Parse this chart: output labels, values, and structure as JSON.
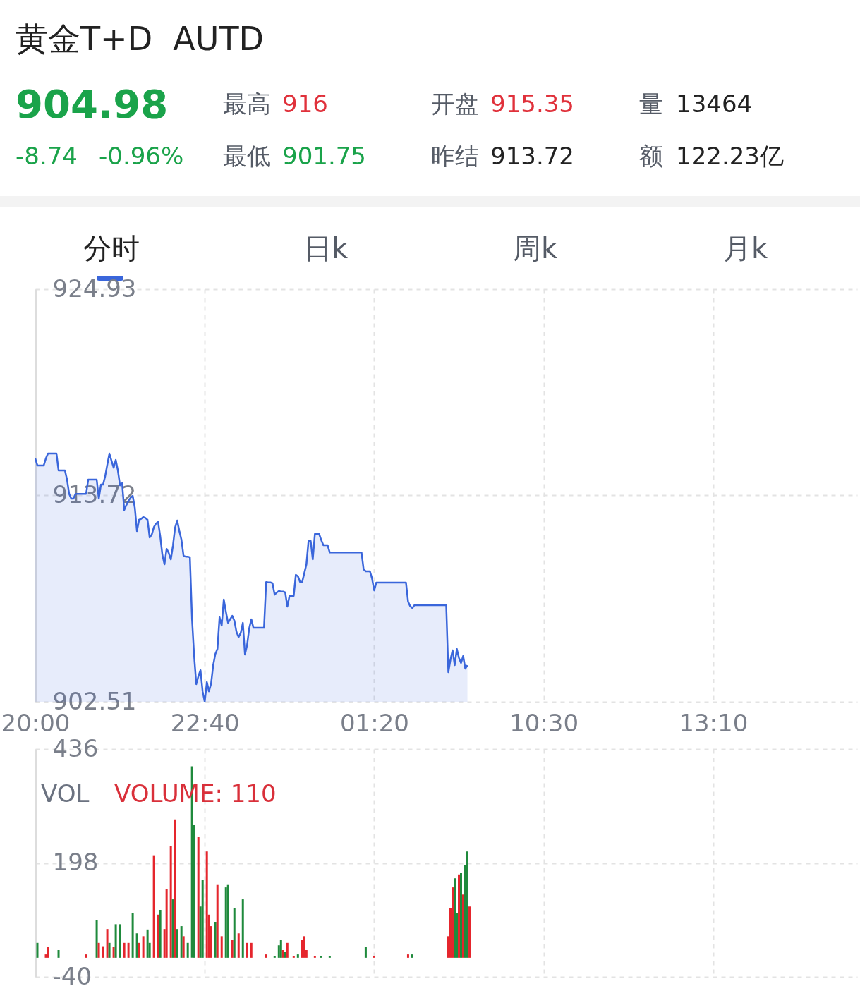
{
  "chart_data": [
    {
      "type": "area",
      "title": "黄金T+D  AUTD",
      "annotations": [
        "904.98",
        "-8.74",
        "-0.96%",
        "最高",
        "916",
        "最低",
        "901.75",
        "开盘",
        "915.35",
        "昨结",
        "913.72",
        "量",
        "13464",
        "额",
        "122.23亿",
        "分时",
        "日k",
        "周k",
        "月k"
      ],
      "color": "#3a66db",
      "categories": [
        "20:00",
        null,
        null,
        null,
        null,
        null,
        null,
        null,
        null,
        null,
        null,
        null,
        null,
        null,
        null,
        null,
        null,
        null,
        null,
        null,
        null,
        null,
        null,
        null,
        null,
        null,
        null,
        null,
        null,
        null,
        null,
        null,
        null,
        null,
        null,
        null,
        null,
        null,
        null,
        null,
        null,
        null,
        null,
        null,
        null,
        null,
        null,
        null,
        null,
        null,
        null,
        null,
        null,
        null,
        null,
        null,
        null,
        null,
        null,
        null,
        null,
        null,
        null,
        null,
        null,
        null,
        null,
        null,
        null,
        null,
        null,
        null,
        null,
        null,
        null,
        null,
        null,
        null,
        null,
        null,
        "22:40",
        null,
        null,
        null,
        null,
        null,
        null,
        null,
        null,
        null,
        null,
        null,
        null,
        null,
        null,
        null,
        null,
        null,
        null,
        null,
        null,
        null,
        null,
        null,
        null,
        null,
        null,
        null,
        null,
        null,
        null,
        null,
        null,
        null,
        null,
        null,
        null,
        null,
        null,
        null,
        null,
        null,
        null,
        null,
        null,
        null,
        null,
        null,
        null,
        null,
        null,
        null,
        null,
        null,
        null,
        null,
        null,
        null,
        null,
        null,
        null,
        null,
        null,
        null,
        null,
        null,
        null,
        null,
        null,
        null,
        null,
        null,
        null,
        null,
        null,
        null,
        null,
        null,
        null,
        null,
        "01:20",
        null,
        null,
        null,
        null,
        null,
        null,
        null,
        null,
        null,
        null,
        null,
        null,
        null,
        null,
        null,
        null,
        null,
        null,
        null,
        null,
        null,
        null,
        null,
        null,
        null,
        null,
        null,
        null,
        null,
        null,
        null,
        null,
        null,
        null,
        null,
        null,
        null,
        null,
        null,
        null,
        null,
        null,
        null,
        null,
        null,
        null,
        null,
        null,
        null,
        null,
        null,
        null,
        null,
        null,
        null,
        null,
        null,
        null,
        null,
        null,
        null,
        null,
        null,
        null,
        null,
        null,
        null,
        null,
        null,
        null,
        null,
        null,
        null,
        null,
        null,
        null,
        null,
        null,
        null,
        "10:30",
        null,
        null,
        null,
        null,
        null,
        null,
        null,
        null,
        null,
        null,
        null,
        null,
        null,
        null,
        null,
        null,
        null,
        null,
        null,
        null,
        null,
        null,
        null,
        null,
        null,
        null,
        null,
        null,
        null,
        null,
        null,
        null,
        null,
        null,
        null,
        null,
        null,
        null,
        null,
        null,
        null,
        null,
        null,
        null,
        null,
        null,
        null,
        null,
        null,
        null,
        null,
        null,
        null,
        null,
        null,
        null,
        null,
        null,
        null,
        null,
        null,
        null,
        null,
        null,
        null,
        null,
        null,
        null,
        null,
        null,
        null,
        null,
        null,
        null,
        null,
        null,
        null,
        null,
        null,
        "13:10",
        null,
        null,
        null,
        null,
        null,
        null,
        null,
        null,
        null,
        null,
        null,
        null,
        null,
        null,
        null,
        null,
        null,
        null,
        null,
        null,
        null,
        null,
        null,
        null,
        null,
        null,
        null,
        null,
        null,
        null,
        null,
        null,
        null,
        null,
        null,
        null,
        null,
        null,
        null,
        null,
        null,
        null,
        null,
        null,
        null,
        null,
        null,
        null,
        null,
        null,
        null,
        null,
        null,
        null,
        null,
        null,
        null,
        null,
        null,
        null,
        null,
        null,
        null,
        null,
        null,
        null,
        null,
        null
      ],
      "values": [
        915.73,
        915.35,
        915.35,
        915.35,
        915.35,
        915.73,
        916.0,
        916.0,
        916.0,
        916.0,
        916.0,
        915.08,
        915.08,
        915.08,
        915.08,
        914.58,
        913.81,
        913.55,
        913.55,
        913.81,
        913.81,
        913.81,
        913.81,
        913.81,
        913.81,
        914.58,
        914.58,
        914.58,
        914.58,
        914.58,
        913.55,
        914.31,
        914.31,
        914.77,
        915.4,
        916.0,
        915.6,
        915.23,
        915.65,
        915.08,
        914.27,
        914.39,
        912.93,
        913.2,
        913.43,
        913.6,
        913.7,
        913.05,
        911.78,
        912.4,
        912.45,
        912.55,
        912.5,
        912.4,
        911.44,
        911.6,
        912.0,
        912.2,
        912.28,
        911.5,
        910.5,
        909.98,
        910.82,
        910.6,
        910.25,
        911.0,
        911.97,
        912.36,
        911.8,
        911.32,
        910.44,
        910.4,
        910.4,
        910.36,
        907.03,
        905.0,
        903.47,
        903.9,
        904.23,
        903.08,
        902.51,
        903.58,
        903.08,
        903.5,
        904.5,
        905.11,
        905.38,
        907.11,
        906.65,
        908.07,
        907.4,
        906.8,
        907.0,
        907.18,
        906.92,
        906.3,
        906.03,
        906.26,
        906.8,
        905.08,
        905.6,
        906.5,
        906.99,
        906.53,
        906.53,
        906.53,
        906.53,
        906.53,
        906.53,
        909.02,
        909.0,
        909.0,
        908.95,
        908.33,
        908.45,
        908.53,
        908.5,
        908.5,
        908.45,
        907.68,
        908.26,
        908.26,
        908.26,
        909.41,
        909.33,
        909.02,
        909.02,
        909.5,
        909.98,
        911.25,
        911.25,
        910.25,
        911.63,
        911.63,
        911.63,
        911.3,
        911.02,
        911.02,
        911.02,
        910.63,
        910.63,
        910.63,
        910.63,
        910.63,
        910.63,
        910.63,
        910.63,
        910.63,
        910.63,
        910.63,
        910.63,
        910.63,
        910.63,
        910.63,
        910.63,
        909.71,
        909.6,
        909.6,
        909.6,
        909.2,
        908.56,
        908.99,
        908.99,
        908.99,
        908.99,
        908.99,
        908.99,
        908.99,
        908.99,
        908.99,
        908.99,
        908.99,
        908.99,
        908.99,
        908.99,
        908.99,
        907.95,
        907.7,
        907.61,
        907.76,
        907.76,
        907.76,
        907.76,
        907.76,
        907.76,
        907.76,
        907.76,
        907.76,
        907.76,
        907.76,
        907.76,
        907.76,
        907.76,
        907.76,
        907.76,
        904.12,
        904.8,
        905.31,
        904.5,
        905.38,
        904.9,
        904.62,
        905.0,
        904.31,
        904.5,
        null,
        null,
        null,
        null,
        null,
        null,
        null,
        null,
        null,
        null,
        null,
        null,
        null,
        null,
        null,
        null,
        null,
        null,
        null,
        null,
        null,
        null,
        null,
        null,
        null,
        null,
        null,
        null,
        null,
        null,
        null,
        null,
        null,
        null,
        null,
        null,
        null,
        null,
        null,
        null,
        null,
        null,
        null,
        null,
        null,
        null,
        null,
        null,
        null,
        null,
        null,
        null,
        null,
        null,
        null,
        null,
        null,
        null,
        null,
        null,
        null,
        null,
        null,
        null,
        null,
        null,
        null,
        null,
        null,
        null,
        null,
        null,
        null,
        null,
        null,
        null,
        null,
        null,
        null,
        null,
        null,
        null,
        null,
        null,
        null,
        null,
        null,
        null,
        null,
        null,
        null,
        null,
        null,
        null,
        null,
        null,
        null,
        null,
        null,
        null,
        null,
        null,
        null,
        null,
        null,
        null,
        null,
        null,
        null,
        null,
        null,
        null,
        null,
        null,
        null,
        null,
        null,
        null,
        null,
        null,
        null,
        null,
        null,
        null,
        null,
        null,
        null,
        null,
        null,
        null,
        null,
        null,
        null,
        null,
        null,
        null,
        null,
        null,
        null,
        null,
        null,
        null,
        null,
        null,
        null,
        null,
        null,
        null,
        null,
        null,
        null,
        null,
        null,
        null,
        null,
        null,
        null,
        null,
        null,
        null,
        null,
        null,
        null,
        null,
        null,
        null,
        null,
        null,
        null,
        null,
        null,
        null,
        null,
        null,
        null,
        null,
        null,
        null,
        null,
        null,
        null,
        null,
        null,
        null
      ],
      "ylim": [
        902.51,
        924.93
      ],
      "yticks": [
        902.51,
        913.72,
        924.93
      ],
      "grid": true
    },
    {
      "type": "bar",
      "annotations": [
        "VOL",
        "VOLUME: 110"
      ],
      "categories": [
        null,
        null,
        null,
        null,
        null,
        null,
        null,
        null,
        null,
        null,
        null,
        null,
        null,
        null,
        null,
        null,
        null,
        null,
        null,
        null,
        null,
        null,
        null,
        null,
        null,
        null,
        null,
        null,
        null,
        null,
        null,
        null,
        null,
        null,
        null,
        null,
        null,
        null,
        null,
        null,
        null,
        null,
        null,
        null,
        null,
        null,
        null,
        null,
        null,
        null,
        null,
        null,
        null,
        null,
        null,
        null,
        null,
        null,
        null,
        null,
        null,
        null,
        null,
        null,
        null,
        null,
        null,
        null,
        null,
        null,
        null,
        null,
        null,
        null,
        null,
        null,
        null,
        null,
        null,
        null,
        null,
        null,
        null,
        null,
        null,
        null,
        null,
        null,
        null,
        null,
        null,
        null,
        null,
        null,
        null,
        null,
        null,
        null,
        null,
        null,
        null,
        null,
        null,
        null,
        null,
        null,
        null,
        null,
        null,
        null,
        null,
        null,
        null,
        null,
        null,
        null,
        null,
        null,
        null,
        null,
        null,
        null,
        null,
        null,
        null,
        null,
        null,
        null,
        null,
        null,
        null,
        null,
        null,
        null,
        null,
        null,
        null,
        null,
        null,
        null,
        null,
        null,
        null,
        null,
        null,
        null,
        null,
        null,
        null,
        null,
        null,
        null,
        null,
        null,
        null,
        null,
        null,
        null,
        null,
        null,
        null,
        null,
        null,
        null,
        null,
        null,
        null,
        null,
        null,
        null,
        null,
        null,
        null,
        null,
        null,
        null,
        null,
        null,
        null,
        null,
        null,
        null,
        null,
        null,
        null,
        null,
        null,
        null,
        null,
        null,
        null,
        null,
        null,
        null,
        null,
        null,
        null,
        null,
        null,
        null,
        null,
        null,
        null,
        null,
        null,
        null,
        null,
        null,
        null,
        null,
        null,
        null,
        null,
        null,
        null,
        null,
        null,
        null,
        null,
        null,
        null,
        null,
        null,
        null,
        null,
        null,
        null,
        null,
        null,
        null,
        null,
        null,
        null,
        null,
        null,
        null,
        null,
        null,
        null,
        null,
        null,
        null,
        null,
        null,
        null,
        null,
        null,
        null,
        null,
        null,
        null,
        null,
        null,
        null,
        null,
        null,
        null,
        null,
        null,
        null,
        null,
        null,
        null,
        null,
        null,
        null,
        null,
        null,
        null,
        null,
        null,
        null,
        null,
        null,
        null,
        null,
        null,
        null,
        null,
        null,
        null,
        null,
        null,
        null,
        null,
        null,
        null,
        null,
        null,
        null,
        null,
        null,
        null,
        null,
        null,
        null,
        null,
        null,
        null,
        null,
        null,
        null,
        null,
        null,
        null,
        null,
        null,
        null,
        null,
        null,
        null,
        null,
        null,
        null,
        null,
        null,
        null,
        null,
        null,
        null,
        null,
        null,
        null,
        null,
        null,
        null,
        null,
        null,
        null,
        null,
        null,
        null,
        null,
        null,
        null,
        null,
        null,
        null,
        null,
        null,
        null,
        null,
        null,
        null,
        null,
        null,
        null,
        null,
        null,
        null,
        null,
        null,
        null,
        null,
        null,
        null,
        null,
        null,
        null,
        null,
        null,
        null,
        null,
        null,
        null,
        null,
        null,
        null,
        null,
        null,
        null,
        null,
        null,
        null,
        null,
        null,
        null,
        null,
        null,
        null,
        null,
        null,
        null,
        null,
        null,
        null,
        null,
        null,
        null
      ],
      "values": [
        null,
        31,
        null,
        null,
        null,
        7,
        22,
        null,
        null,
        null,
        null,
        16,
        null,
        null,
        null,
        null,
        null,
        null,
        null,
        null,
        null,
        null,
        null,
        null,
        7,
        null,
        null,
        null,
        null,
        78,
        31,
        null,
        24,
        null,
        60,
        31,
        null,
        22,
        70,
        null,
        70,
        null,
        31,
        null,
        31,
        null,
        93,
        null,
        51,
        31,
        null,
        45,
        null,
        59,
        31,
        null,
        214,
        null,
        90,
        100,
        null,
        60,
        144,
        null,
        233,
        122,
        289,
        60,
        null,
        66,
        45,
        null,
        31,
        null,
        400,
        277,
        null,
        252,
        107,
        163,
        null,
        222,
        90,
        66,
        null,
        75,
        152,
        null,
        45,
        null,
        147,
        152,
        null,
        37,
        104,
        null,
        51,
        null,
        122,
        null,
        31,
        null,
        31,
        null,
        null,
        null,
        null,
        null,
        null,
        7,
        null,
        null,
        null,
        3,
        null,
        26,
        37,
        16,
        12,
        31,
        null,
        null,
        3,
        null,
        7,
        null,
        37,
        45,
        16,
        null,
        null,
        null,
        3,
        null,
        null,
        3,
        null,
        null,
        null,
        3,
        null,
        null,
        null,
        null,
        null,
        null,
        null,
        null,
        null,
        null,
        null,
        null,
        null,
        null,
        null,
        null,
        22,
        null,
        null,
        null,
        3,
        null,
        null,
        null,
        null,
        null,
        null,
        null,
        null,
        null,
        null,
        null,
        null,
        null,
        null,
        null,
        7,
        null,
        7,
        null,
        null,
        null,
        null,
        null,
        null,
        null,
        null,
        null,
        null,
        null,
        null,
        null,
        null,
        null,
        null,
        45,
        104,
        147,
        166,
        93,
        174,
        178,
        132,
        193,
        222,
        107,
        null,
        null,
        null,
        null,
        null,
        null,
        null,
        null,
        null,
        null,
        null,
        null,
        null,
        null,
        null,
        null,
        null,
        null,
        null,
        null,
        null,
        null,
        null,
        null,
        null,
        null,
        null,
        null,
        null,
        null,
        null,
        null,
        null,
        null,
        null,
        null,
        null,
        null,
        null,
        null,
        null,
        null,
        null,
        null,
        null,
        null,
        null,
        null,
        null,
        null,
        null,
        null,
        null,
        null,
        null,
        null,
        null,
        null,
        null,
        null,
        null,
        null,
        null,
        null,
        null,
        null,
        null,
        null,
        null,
        null,
        null,
        null,
        null,
        null,
        null,
        null,
        null,
        null,
        null,
        null,
        null,
        null,
        null,
        null,
        null,
        null,
        null,
        null,
        null,
        null,
        null,
        null,
        null,
        null,
        null,
        null,
        null,
        null,
        null,
        null,
        null,
        null,
        null,
        null,
        null,
        null,
        null,
        null,
        null,
        null,
        null,
        null,
        null,
        null,
        null,
        null,
        null,
        null,
        null,
        null,
        null,
        null,
        null,
        null,
        null,
        null,
        null,
        null,
        null,
        null,
        null,
        null,
        null,
        null,
        null,
        null,
        null,
        null,
        null,
        null,
        null,
        null,
        null,
        null,
        null,
        null,
        null,
        null,
        null,
        null,
        null,
        null,
        null,
        null,
        null,
        null,
        null,
        null,
        null,
        null,
        null,
        null,
        null,
        null,
        null,
        null,
        null,
        null,
        null,
        null,
        null,
        null,
        null,
        null,
        null,
        null,
        null,
        null,
        null,
        null,
        null,
        null,
        null
      ],
      "colors": [
        null,
        "#1f8a3c",
        null,
        null,
        null,
        "#e5262d",
        "#e5262d",
        null,
        null,
        null,
        null,
        "#1f8a3c",
        null,
        null,
        null,
        null,
        null,
        null,
        null,
        null,
        null,
        null,
        null,
        null,
        "#e5262d",
        null,
        null,
        null,
        null,
        "#1f8a3c",
        "#e5262d",
        null,
        "#e5262d",
        null,
        "#e5262d",
        "#1f8a3c",
        null,
        "#e5262d",
        "#1f8a3c",
        null,
        "#1f8a3c",
        null,
        "#e5262d",
        null,
        "#e5262d",
        null,
        "#1f8a3c",
        null,
        "#1f8a3c",
        "#e5262d",
        null,
        "#e5262d",
        null,
        "#1f8a3c",
        "#1f8a3c",
        null,
        "#e5262d",
        null,
        "#e5262d",
        "#1f8a3c",
        null,
        "#e5262d",
        "#e5262d",
        null,
        "#e5262d",
        "#1f8a3c",
        "#e5262d",
        "#1f8a3c",
        null,
        "#1f8a3c",
        "#e5262d",
        null,
        "#1f8a3c",
        null,
        "#1f8a3c",
        "#1f8a3c",
        null,
        "#e5262d",
        "#1f8a3c",
        "#1f8a3c",
        null,
        "#e5262d",
        "#e5262d",
        "#e5262d",
        null,
        "#1f8a3c",
        "#e5262d",
        null,
        "#e5262d",
        null,
        "#1f8a3c",
        "#1f8a3c",
        null,
        "#e5262d",
        "#1f8a3c",
        null,
        "#e5262d",
        null,
        "#1f8a3c",
        null,
        "#e5262d",
        null,
        "#e5262d",
        null,
        null,
        null,
        null,
        null,
        null,
        "#e5262d",
        null,
        null,
        null,
        "#1f8a3c",
        null,
        "#1f8a3c",
        "#1f8a3c",
        "#e5262d",
        "#1f8a3c",
        "#e5262d",
        null,
        null,
        "#e5262d",
        null,
        "#1f8a3c",
        null,
        "#e5262d",
        "#e5262d",
        "#e5262d",
        null,
        null,
        null,
        "#e5262d",
        null,
        null,
        "#1f8a3c",
        null,
        null,
        null,
        "#1f8a3c",
        null,
        null,
        null,
        null,
        null,
        null,
        null,
        null,
        null,
        null,
        null,
        null,
        null,
        null,
        null,
        null,
        "#1f8a3c",
        null,
        null,
        null,
        "#e5262d",
        null,
        null,
        null,
        null,
        null,
        null,
        null,
        null,
        null,
        null,
        null,
        null,
        null,
        null,
        null,
        "#e5262d",
        null,
        "#1f8a3c",
        null,
        null,
        null,
        null,
        null,
        null,
        null,
        null,
        null,
        null,
        null,
        null,
        null,
        null,
        null,
        null,
        "#e5262d",
        "#e5262d",
        "#e5262d",
        "#1f8a3c",
        "#1f8a3c",
        "#e5262d",
        "#1f8a3c",
        "#e5262d",
        "#1f8a3c",
        "#1f8a3c",
        "#e5262d",
        null,
        null,
        null,
        null,
        null,
        null,
        null,
        null,
        null,
        null,
        null,
        null,
        null,
        null,
        null,
        null,
        null,
        null,
        null,
        null,
        null,
        null,
        null,
        null,
        null,
        null,
        null,
        null,
        null,
        null,
        null,
        null,
        null,
        null,
        null,
        null,
        null,
        null,
        null,
        null,
        null,
        null,
        null,
        null,
        null,
        null,
        null,
        null,
        null,
        null,
        null,
        null,
        null,
        null,
        null,
        null,
        null,
        null,
        null,
        null,
        null,
        null,
        null,
        null,
        null,
        null,
        null,
        null,
        null,
        null,
        null,
        null,
        null,
        null,
        null,
        null,
        null,
        null,
        null,
        null,
        null,
        null,
        null,
        null,
        null,
        null,
        null,
        null,
        null,
        null,
        null,
        null,
        null,
        null,
        null,
        null,
        null,
        null,
        null,
        null,
        null,
        null,
        null,
        null,
        null,
        null,
        null,
        null,
        null,
        null,
        null,
        null,
        null,
        null,
        null,
        null,
        null,
        null,
        null,
        null,
        null,
        null,
        null,
        null,
        null,
        null,
        null,
        null,
        null,
        null,
        null,
        null,
        null,
        null,
        null,
        null,
        null,
        null,
        null,
        null,
        null,
        null,
        null,
        null,
        null,
        null,
        null,
        null,
        null,
        null,
        null,
        null,
        null,
        null,
        null,
        null,
        null,
        null,
        null,
        null,
        null,
        null,
        null,
        null,
        null,
        null,
        null,
        null,
        null,
        null,
        null,
        null,
        null,
        null,
        null,
        null,
        null,
        null,
        null,
        null,
        null,
        null,
        null
      ],
      "ylim": [
        -40,
        436
      ],
      "yticks": [
        -40,
        198,
        436
      ],
      "grid": true,
      "tick_labels": "y"
    }
  ]
}
